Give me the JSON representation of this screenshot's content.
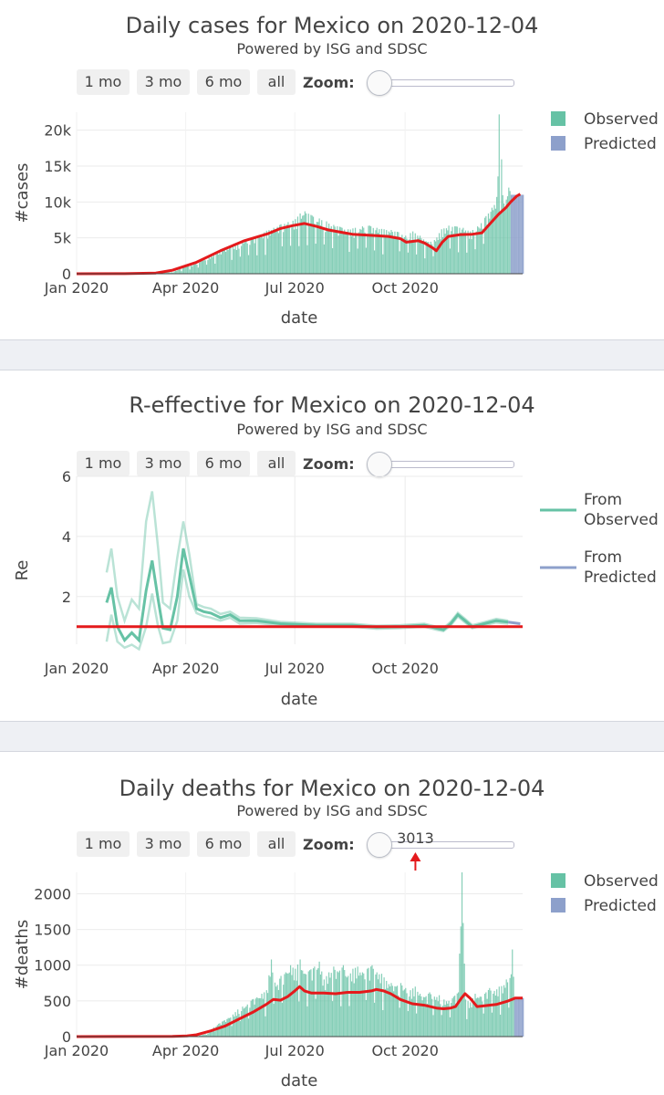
{
  "buttons": [
    "1 mo",
    "3 mo",
    "6 mo",
    "all"
  ],
  "zoom_label": "Zoom:",
  "colors": {
    "observed": "#66c2a5",
    "predicted": "#8da0cb",
    "trend": "#e41a1c"
  },
  "chart_data": [
    {
      "id": "cases",
      "type": "bar",
      "title": "Daily cases for Mexico on 2020-12-04",
      "subtitle": "Powered by ISG and SDSC",
      "xlabel": "date",
      "ylabel": "#cases",
      "xticks": [
        "Jan 2020",
        "Apr 2020",
        "Jul 2020",
        "Oct 2020"
      ],
      "yticks": [
        "0",
        "5k",
        "10k",
        "15k",
        "20k"
      ],
      "ylim": [
        0,
        22500
      ],
      "legend": [
        "Observed",
        "Predicted"
      ],
      "trend": [
        [
          0,
          0
        ],
        [
          40,
          10
        ],
        [
          66,
          100
        ],
        [
          80,
          500
        ],
        [
          100,
          1600
        ],
        [
          120,
          3200
        ],
        [
          140,
          4600
        ],
        [
          160,
          5600
        ],
        [
          170,
          6300
        ],
        [
          180,
          6700
        ],
        [
          190,
          7000
        ],
        [
          200,
          6600
        ],
        [
          210,
          6100
        ],
        [
          230,
          5500
        ],
        [
          250,
          5300
        ],
        [
          260,
          5200
        ],
        [
          270,
          4900
        ],
        [
          275,
          4400
        ],
        [
          285,
          4600
        ],
        [
          290,
          4300
        ],
        [
          297,
          3600
        ],
        [
          300,
          3200
        ],
        [
          305,
          4400
        ],
        [
          310,
          5200
        ],
        [
          320,
          5450
        ],
        [
          330,
          5500
        ],
        [
          338,
          5700
        ],
        [
          345,
          7000
        ],
        [
          352,
          8300
        ],
        [
          358,
          9200
        ],
        [
          362,
          10000
        ],
        [
          367,
          10800
        ],
        [
          370,
          11100
        ]
      ],
      "spikes": [
        [
          48,
          9
        ],
        [
          60,
          25
        ],
        [
          70,
          300
        ],
        [
          78,
          180
        ],
        [
          85,
          600
        ],
        [
          92,
          1200
        ],
        [
          98,
          1300
        ],
        [
          104,
          1900
        ],
        [
          110,
          2500
        ],
        [
          116,
          2800
        ],
        [
          122,
          3500
        ],
        [
          128,
          3800
        ],
        [
          134,
          4200
        ],
        [
          140,
          4700
        ],
        [
          146,
          4900
        ],
        [
          152,
          5400
        ],
        [
          158,
          6000
        ],
        [
          164,
          6400
        ],
        [
          170,
          6900
        ],
        [
          176,
          7200
        ],
        [
          182,
          7600
        ],
        [
          186,
          8400
        ],
        [
          190,
          8700
        ],
        [
          196,
          8100
        ],
        [
          202,
          7700
        ],
        [
          208,
          7300
        ],
        [
          214,
          6800
        ],
        [
          220,
          6500
        ],
        [
          226,
          6200
        ],
        [
          232,
          6400
        ],
        [
          238,
          6600
        ],
        [
          244,
          6700
        ],
        [
          250,
          6400
        ],
        [
          256,
          6200
        ],
        [
          262,
          6100
        ],
        [
          268,
          5800
        ],
        [
          274,
          5300
        ],
        [
          280,
          5900
        ],
        [
          286,
          5300
        ],
        [
          292,
          4400
        ],
        [
          298,
          4700
        ],
        [
          304,
          6200
        ],
        [
          310,
          6700
        ],
        [
          316,
          6600
        ],
        [
          322,
          6400
        ],
        [
          328,
          5900
        ],
        [
          334,
          6600
        ],
        [
          340,
          7800
        ],
        [
          346,
          9200
        ],
        [
          350,
          10700
        ],
        [
          352,
          22200
        ],
        [
          356,
          9800
        ],
        [
          360,
          12000
        ],
        [
          364,
          11300
        ]
      ],
      "pred_start": 362,
      "pred_value": 11000
    },
    {
      "id": "re",
      "type": "line",
      "title": "R-effective for Mexico on 2020-12-04",
      "subtitle": "Powered by ISG and SDSC",
      "xlabel": "date",
      "ylabel": "Re",
      "xticks": [
        "Jan 2020",
        "Apr 2020",
        "Jul 2020",
        "Oct 2020"
      ],
      "yticks": [
        "2",
        "4",
        "6"
      ],
      "ylim": [
        0,
        6
      ],
      "legend": [
        "From Observed",
        "From Predicted"
      ],
      "baseline": 1,
      "main": [
        [
          25,
          1.8
        ],
        [
          29,
          2.3
        ],
        [
          34,
          1.0
        ],
        [
          40,
          0.55
        ],
        [
          46,
          0.8
        ],
        [
          52,
          0.55
        ],
        [
          58,
          2.2
        ],
        [
          63,
          3.2
        ],
        [
          68,
          1.9
        ],
        [
          72,
          0.95
        ],
        [
          78,
          0.9
        ],
        [
          84,
          2.0
        ],
        [
          89,
          3.6
        ],
        [
          94,
          2.7
        ],
        [
          100,
          1.6
        ],
        [
          106,
          1.5
        ],
        [
          112,
          1.45
        ],
        [
          120,
          1.3
        ],
        [
          128,
          1.4
        ],
        [
          136,
          1.2
        ],
        [
          150,
          1.2
        ],
        [
          170,
          1.1
        ],
        [
          200,
          1.05
        ],
        [
          230,
          1.05
        ],
        [
          250,
          0.98
        ],
        [
          270,
          1.0
        ],
        [
          290,
          1.05
        ],
        [
          300,
          0.95
        ],
        [
          306,
          0.9
        ],
        [
          312,
          1.1
        ],
        [
          318,
          1.4
        ],
        [
          324,
          1.2
        ],
        [
          330,
          1.0
        ],
        [
          340,
          1.1
        ],
        [
          350,
          1.2
        ],
        [
          360,
          1.15
        ]
      ],
      "upper": [
        [
          25,
          2.8
        ],
        [
          29,
          3.6
        ],
        [
          34,
          2.0
        ],
        [
          40,
          1.2
        ],
        [
          46,
          1.9
        ],
        [
          52,
          1.6
        ],
        [
          58,
          4.5
        ],
        [
          63,
          5.5
        ],
        [
          68,
          3.6
        ],
        [
          72,
          1.8
        ],
        [
          78,
          1.6
        ],
        [
          84,
          3.3
        ],
        [
          89,
          4.5
        ],
        [
          94,
          3.4
        ],
        [
          100,
          1.75
        ],
        [
          106,
          1.65
        ],
        [
          112,
          1.6
        ],
        [
          120,
          1.42
        ],
        [
          128,
          1.5
        ],
        [
          136,
          1.3
        ],
        [
          150,
          1.28
        ],
        [
          170,
          1.16
        ],
        [
          200,
          1.1
        ],
        [
          230,
          1.1
        ],
        [
          250,
          1.03
        ],
        [
          270,
          1.05
        ],
        [
          290,
          1.1
        ],
        [
          300,
          1.0
        ],
        [
          306,
          0.95
        ],
        [
          312,
          1.16
        ],
        [
          318,
          1.46
        ],
        [
          324,
          1.26
        ],
        [
          330,
          1.05
        ],
        [
          340,
          1.15
        ],
        [
          350,
          1.26
        ],
        [
          360,
          1.2
        ]
      ],
      "lower": [
        [
          25,
          0.5
        ],
        [
          29,
          1.4
        ],
        [
          34,
          0.5
        ],
        [
          40,
          0.3
        ],
        [
          46,
          0.4
        ],
        [
          52,
          0.25
        ],
        [
          58,
          1.0
        ],
        [
          63,
          2.1
        ],
        [
          68,
          1.0
        ],
        [
          72,
          0.45
        ],
        [
          78,
          0.5
        ],
        [
          84,
          1.2
        ],
        [
          89,
          2.9
        ],
        [
          94,
          2.0
        ],
        [
          100,
          1.45
        ],
        [
          106,
          1.35
        ],
        [
          112,
          1.3
        ],
        [
          120,
          1.2
        ],
        [
          128,
          1.3
        ],
        [
          136,
          1.1
        ],
        [
          150,
          1.12
        ],
        [
          170,
          1.04
        ],
        [
          200,
          1.0
        ],
        [
          230,
          1.0
        ],
        [
          250,
          0.93
        ],
        [
          270,
          0.95
        ],
        [
          290,
          1.0
        ],
        [
          300,
          0.9
        ],
        [
          306,
          0.85
        ],
        [
          312,
          1.04
        ],
        [
          318,
          1.34
        ],
        [
          324,
          1.14
        ],
        [
          330,
          0.95
        ],
        [
          340,
          1.05
        ],
        [
          350,
          1.14
        ],
        [
          360,
          1.1
        ]
      ],
      "pred": [
        [
          360,
          1.15
        ],
        [
          370,
          1.1
        ]
      ]
    },
    {
      "id": "deaths",
      "type": "bar",
      "title": "Daily deaths for Mexico on 2020-12-04",
      "subtitle": "Powered by ISG and SDSC",
      "xlabel": "date",
      "ylabel": "#deaths",
      "xticks": [
        "Jan 2020",
        "Apr 2020",
        "Jul 2020",
        "Oct 2020"
      ],
      "yticks": [
        "0",
        "500",
        "1000",
        "1500",
        "2000"
      ],
      "ylim": [
        0,
        2300
      ],
      "legend": [
        "Observed",
        "Predicted"
      ],
      "annotation": {
        "text": "3013",
        "x": 278
      },
      "trend": [
        [
          0,
          0
        ],
        [
          80,
          2
        ],
        [
          92,
          10
        ],
        [
          100,
          25
        ],
        [
          112,
          80
        ],
        [
          124,
          150
        ],
        [
          136,
          250
        ],
        [
          148,
          350
        ],
        [
          158,
          450
        ],
        [
          164,
          520
        ],
        [
          170,
          510
        ],
        [
          176,
          560
        ],
        [
          182,
          640
        ],
        [
          186,
          700
        ],
        [
          190,
          640
        ],
        [
          196,
          610
        ],
        [
          206,
          610
        ],
        [
          216,
          600
        ],
        [
          226,
          620
        ],
        [
          236,
          620
        ],
        [
          246,
          640
        ],
        [
          250,
          660
        ],
        [
          256,
          640
        ],
        [
          262,
          600
        ],
        [
          270,
          520
        ],
        [
          280,
          460
        ],
        [
          290,
          440
        ],
        [
          300,
          400
        ],
        [
          306,
          390
        ],
        [
          312,
          400
        ],
        [
          316,
          420
        ],
        [
          321,
          540
        ],
        [
          324,
          600
        ],
        [
          328,
          540
        ],
        [
          334,
          420
        ],
        [
          340,
          430
        ],
        [
          350,
          450
        ],
        [
          360,
          500
        ],
        [
          366,
          540
        ],
        [
          372,
          540
        ]
      ],
      "spikes": [
        [
          100,
          10
        ],
        [
          105,
          25
        ],
        [
          110,
          60
        ],
        [
          114,
          130
        ],
        [
          118,
          180
        ],
        [
          122,
          220
        ],
        [
          126,
          260
        ],
        [
          130,
          310
        ],
        [
          134,
          380
        ],
        [
          138,
          420
        ],
        [
          142,
          450
        ],
        [
          146,
          520
        ],
        [
          150,
          550
        ],
        [
          154,
          600
        ],
        [
          158,
          650
        ],
        [
          162,
          1080
        ],
        [
          166,
          700
        ],
        [
          170,
          850
        ],
        [
          174,
          900
        ],
        [
          178,
          1000
        ],
        [
          182,
          950
        ],
        [
          186,
          1080
        ],
        [
          190,
          880
        ],
        [
          194,
          930
        ],
        [
          198,
          980
        ],
        [
          202,
          1050
        ],
        [
          206,
          800
        ],
        [
          210,
          900
        ],
        [
          214,
          980
        ],
        [
          218,
          900
        ],
        [
          222,
          1000
        ],
        [
          226,
          850
        ],
        [
          230,
          950
        ],
        [
          234,
          980
        ],
        [
          238,
          900
        ],
        [
          242,
          950
        ],
        [
          246,
          1000
        ],
        [
          250,
          900
        ],
        [
          254,
          880
        ],
        [
          258,
          780
        ],
        [
          262,
          750
        ],
        [
          266,
          700
        ],
        [
          270,
          750
        ],
        [
          274,
          680
        ],
        [
          278,
          650
        ],
        [
          282,
          700
        ],
        [
          286,
          600
        ],
        [
          290,
          550
        ],
        [
          294,
          620
        ],
        [
          298,
          560
        ],
        [
          302,
          580
        ],
        [
          306,
          520
        ],
        [
          310,
          500
        ],
        [
          314,
          560
        ],
        [
          318,
          620
        ],
        [
          321,
          2300
        ],
        [
          324,
          520
        ],
        [
          328,
          480
        ],
        [
          332,
          600
        ],
        [
          336,
          560
        ],
        [
          340,
          600
        ],
        [
          344,
          680
        ],
        [
          348,
          640
        ],
        [
          352,
          700
        ],
        [
          356,
          720
        ],
        [
          358,
          800
        ],
        [
          361,
          820
        ],
        [
          363,
          1220
        ],
        [
          366,
          700
        ]
      ],
      "pred_start": 365,
      "pred_value": 540
    }
  ]
}
